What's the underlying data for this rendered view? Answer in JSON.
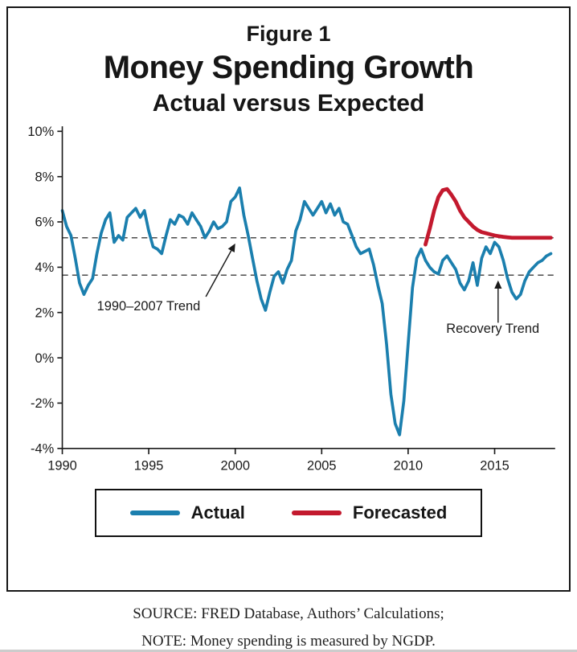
{
  "figure": {
    "label": "Figure 1",
    "title": "Money Spending Growth",
    "subtitle": "Actual versus Expected"
  },
  "legend": {
    "actual": "Actual",
    "forecasted": "Forecasted"
  },
  "footer": {
    "source": "SOURCE: FRED Database, Authors’ Calculations;",
    "note": "NOTE: Money spending is measured by NGDP."
  },
  "colors": {
    "actual": "#1b7fae",
    "forecasted": "#c3192e",
    "axis": "#1a1a1a",
    "dashed": "#4c4c4c",
    "text": "#1a1a1a"
  },
  "chart_data": {
    "type": "line",
    "title": "Money Spending Growth",
    "subtitle": "Actual versus Expected",
    "xlabel": "",
    "ylabel": "",
    "xlim": [
      1990,
      2018.5
    ],
    "ylim": [
      -4,
      10
    ],
    "x_ticks": [
      1990,
      1995,
      2000,
      2005,
      2010,
      2015
    ],
    "y_ticks": [
      10,
      8,
      6,
      4,
      2,
      0,
      -2,
      -4
    ],
    "y_tick_labels": [
      "10%",
      "8%",
      "6%",
      "4%",
      "2%",
      "0%",
      "-2%",
      "-4%"
    ],
    "grid": false,
    "legend_position": "bottom",
    "series": [
      {
        "name": "Actual",
        "color": "#1b7fae",
        "points": [
          [
            1990,
            6.5
          ],
          [
            1990.25,
            5.8
          ],
          [
            1990.5,
            5.4
          ],
          [
            1990.75,
            4.4
          ],
          [
            1991,
            3.3
          ],
          [
            1991.25,
            2.8
          ],
          [
            1991.5,
            3.2
          ],
          [
            1991.75,
            3.5
          ],
          [
            1992,
            4.6
          ],
          [
            1992.25,
            5.5
          ],
          [
            1992.5,
            6.1
          ],
          [
            1992.75,
            6.4
          ],
          [
            1993,
            5.1
          ],
          [
            1993.25,
            5.4
          ],
          [
            1993.5,
            5.2
          ],
          [
            1993.75,
            6.2
          ],
          [
            1994,
            6.4
          ],
          [
            1994.25,
            6.6
          ],
          [
            1994.5,
            6.2
          ],
          [
            1994.75,
            6.5
          ],
          [
            1995,
            5.6
          ],
          [
            1995.25,
            4.9
          ],
          [
            1995.5,
            4.8
          ],
          [
            1995.75,
            4.6
          ],
          [
            1996,
            5.4
          ],
          [
            1996.25,
            6.1
          ],
          [
            1996.5,
            5.9
          ],
          [
            1996.75,
            6.3
          ],
          [
            1997,
            6.2
          ],
          [
            1997.25,
            5.9
          ],
          [
            1997.5,
            6.4
          ],
          [
            1997.75,
            6.1
          ],
          [
            1998,
            5.8
          ],
          [
            1998.25,
            5.3
          ],
          [
            1998.5,
            5.6
          ],
          [
            1998.75,
            6.0
          ],
          [
            1999,
            5.7
          ],
          [
            1999.25,
            5.8
          ],
          [
            1999.5,
            6.0
          ],
          [
            1999.75,
            6.9
          ],
          [
            2000,
            7.1
          ],
          [
            2000.25,
            7.5
          ],
          [
            2000.5,
            6.3
          ],
          [
            2000.75,
            5.4
          ],
          [
            2001,
            4.4
          ],
          [
            2001.25,
            3.4
          ],
          [
            2001.5,
            2.6
          ],
          [
            2001.75,
            2.1
          ],
          [
            2002,
            2.9
          ],
          [
            2002.25,
            3.6
          ],
          [
            2002.5,
            3.8
          ],
          [
            2002.75,
            3.3
          ],
          [
            2003,
            3.9
          ],
          [
            2003.25,
            4.3
          ],
          [
            2003.5,
            5.6
          ],
          [
            2003.75,
            6.1
          ],
          [
            2004,
            6.9
          ],
          [
            2004.25,
            6.6
          ],
          [
            2004.5,
            6.3
          ],
          [
            2004.75,
            6.6
          ],
          [
            2005,
            6.9
          ],
          [
            2005.25,
            6.4
          ],
          [
            2005.5,
            6.8
          ],
          [
            2005.75,
            6.3
          ],
          [
            2006,
            6.6
          ],
          [
            2006.25,
            6.0
          ],
          [
            2006.5,
            5.9
          ],
          [
            2006.75,
            5.4
          ],
          [
            2007,
            4.9
          ],
          [
            2007.25,
            4.6
          ],
          [
            2007.5,
            4.7
          ],
          [
            2007.75,
            4.8
          ],
          [
            2008,
            4.1
          ],
          [
            2008.25,
            3.2
          ],
          [
            2008.5,
            2.4
          ],
          [
            2008.75,
            0.6
          ],
          [
            2009,
            -1.6
          ],
          [
            2009.25,
            -2.9
          ],
          [
            2009.5,
            -3.4
          ],
          [
            2009.75,
            -1.9
          ],
          [
            2010,
            0.6
          ],
          [
            2010.25,
            3.1
          ],
          [
            2010.5,
            4.4
          ],
          [
            2010.75,
            4.8
          ],
          [
            2011,
            4.3
          ],
          [
            2011.25,
            4.0
          ],
          [
            2011.5,
            3.8
          ],
          [
            2011.75,
            3.7
          ],
          [
            2012,
            4.3
          ],
          [
            2012.25,
            4.5
          ],
          [
            2012.5,
            4.2
          ],
          [
            2012.75,
            3.9
          ],
          [
            2013,
            3.3
          ],
          [
            2013.25,
            3.0
          ],
          [
            2013.5,
            3.4
          ],
          [
            2013.75,
            4.2
          ],
          [
            2014,
            3.2
          ],
          [
            2014.25,
            4.4
          ],
          [
            2014.5,
            4.9
          ],
          [
            2014.75,
            4.6
          ],
          [
            2015,
            5.1
          ],
          [
            2015.25,
            4.9
          ],
          [
            2015.5,
            4.3
          ],
          [
            2015.75,
            3.5
          ],
          [
            2016,
            2.9
          ],
          [
            2016.25,
            2.6
          ],
          [
            2016.5,
            2.8
          ],
          [
            2016.75,
            3.4
          ],
          [
            2017,
            3.8
          ],
          [
            2017.25,
            4.0
          ],
          [
            2017.5,
            4.2
          ],
          [
            2017.75,
            4.3
          ],
          [
            2018,
            4.5
          ],
          [
            2018.25,
            4.6
          ]
        ]
      },
      {
        "name": "Forecasted",
        "color": "#c3192e",
        "points": [
          [
            2011,
            5.0
          ],
          [
            2011.25,
            5.7
          ],
          [
            2011.5,
            6.5
          ],
          [
            2011.75,
            7.1
          ],
          [
            2012,
            7.4
          ],
          [
            2012.25,
            7.45
          ],
          [
            2012.5,
            7.2
          ],
          [
            2012.75,
            6.9
          ],
          [
            2013,
            6.5
          ],
          [
            2013.25,
            6.2
          ],
          [
            2013.5,
            6.0
          ],
          [
            2013.75,
            5.8
          ],
          [
            2014,
            5.65
          ],
          [
            2014.25,
            5.55
          ],
          [
            2014.5,
            5.5
          ],
          [
            2014.75,
            5.45
          ],
          [
            2015,
            5.4
          ],
          [
            2015.25,
            5.37
          ],
          [
            2015.5,
            5.34
          ],
          [
            2015.75,
            5.32
          ],
          [
            2016,
            5.3
          ],
          [
            2016.5,
            5.3
          ],
          [
            2017,
            5.3
          ],
          [
            2017.5,
            5.3
          ],
          [
            2018,
            5.3
          ],
          [
            2018.25,
            5.3
          ]
        ]
      }
    ],
    "reference_lines": [
      {
        "key": "trend-1990-2007",
        "label": "1990–2007 Trend",
        "y": 5.3,
        "style": "dashed"
      },
      {
        "key": "recovery-trend",
        "label": "Recovery Trend",
        "y": 3.65,
        "style": "dashed"
      }
    ],
    "annotations": [
      {
        "key": "trend-1990-2007",
        "text": "1990–2007 Trend",
        "text_x": 1992.0,
        "text_y": 2.1,
        "anchor": "start",
        "arrow_from": [
          1998.3,
          2.7
        ],
        "arrow_to": [
          2000.0,
          5.05
        ]
      },
      {
        "key": "recovery-trend",
        "text": "Recovery Trend",
        "text_x": 2012.2,
        "text_y": 1.1,
        "anchor": "start",
        "arrow_from": [
          2015.2,
          1.55
        ],
        "arrow_to": [
          2015.2,
          3.42
        ]
      }
    ]
  }
}
